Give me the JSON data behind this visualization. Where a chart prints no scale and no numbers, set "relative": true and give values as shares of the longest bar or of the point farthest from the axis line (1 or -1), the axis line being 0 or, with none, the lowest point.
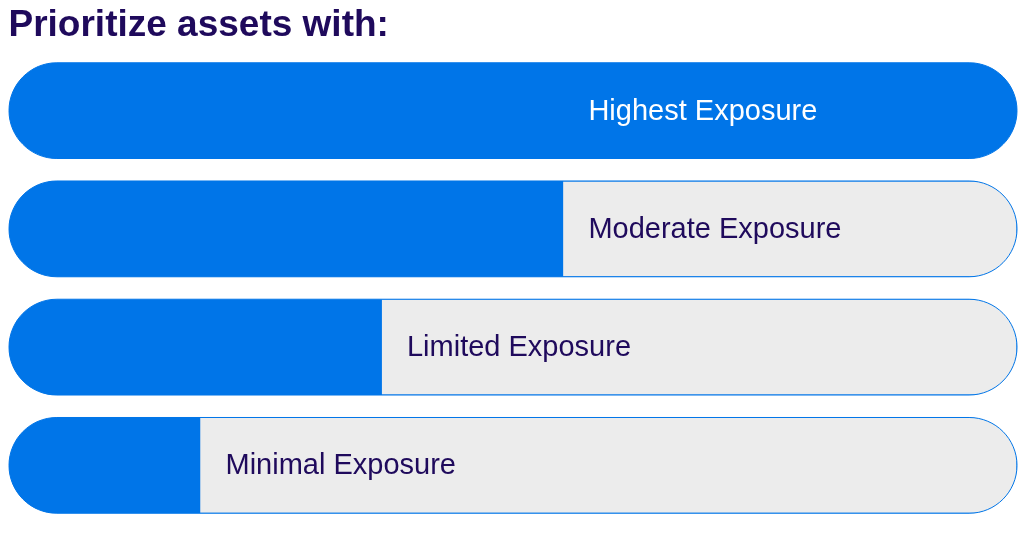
{
  "chart_data": {
    "type": "bar",
    "orientation": "horizontal",
    "relative": true,
    "title": "Prioritize assets with:",
    "categories": [
      "Highest Exposure",
      "Moderate Exposure",
      "Limited Exposure",
      "Minimal Exposure"
    ],
    "values": [
      1,
      0.55,
      0.37,
      0.19
    ],
    "color": "#0075e8",
    "tick_labels": false
  }
}
